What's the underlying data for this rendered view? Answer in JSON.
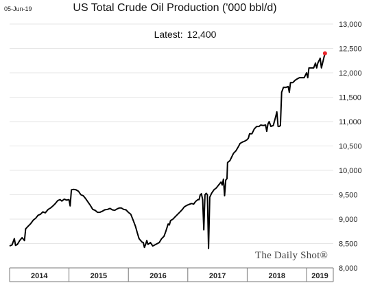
{
  "date_stamp": "05-Jun-19",
  "latest": {
    "label": "Latest:",
    "value": "12,400"
  },
  "watermark": "The Daily Shot®",
  "colors": {
    "line": "#000000",
    "latest_marker": "#e8262b",
    "grid": "#e6e6e6",
    "axis": "#777777"
  },
  "chart_data": {
    "type": "line",
    "title": "US Total Crude Oil Production ('000 bbl/d)",
    "y_axis_position": "right",
    "ylim": [
      8000,
      13000
    ],
    "yticks": [
      8000,
      8500,
      9000,
      9500,
      10000,
      10500,
      11000,
      11500,
      12000,
      12500,
      13000
    ],
    "ytick_labels": [
      "8,000",
      "8,500",
      "9,000",
      "9,500",
      "10,000",
      "10,500",
      "11,000",
      "11,500",
      "12,000",
      "12,500",
      "13,000"
    ],
    "xlim": [
      2014.0,
      2019.45
    ],
    "x_categories": [
      {
        "label": "2014",
        "start": 2014.0,
        "end": 2015.0
      },
      {
        "label": "2015",
        "start": 2015.0,
        "end": 2016.0
      },
      {
        "label": "2016",
        "start": 2016.0,
        "end": 2017.0
      },
      {
        "label": "2017",
        "start": 2017.0,
        "end": 2018.0
      },
      {
        "label": "2018",
        "start": 2018.0,
        "end": 2019.0
      },
      {
        "label": "2019",
        "start": 2019.0,
        "end": 2019.45
      }
    ],
    "grid": true,
    "series": [
      {
        "latest_value": 12400,
        "points": [
          [
            2014.0,
            8450
          ],
          [
            2014.04,
            8470
          ],
          [
            2014.08,
            8600
          ],
          [
            2014.1,
            8460
          ],
          [
            2014.13,
            8480
          ],
          [
            2014.17,
            8560
          ],
          [
            2014.21,
            8620
          ],
          [
            2014.25,
            8560
          ],
          [
            2014.27,
            8800
          ],
          [
            2014.31,
            8850
          ],
          [
            2014.35,
            8900
          ],
          [
            2014.4,
            8980
          ],
          [
            2014.44,
            9020
          ],
          [
            2014.48,
            9080
          ],
          [
            2014.52,
            9100
          ],
          [
            2014.56,
            9150
          ],
          [
            2014.6,
            9130
          ],
          [
            2014.65,
            9200
          ],
          [
            2014.69,
            9230
          ],
          [
            2014.73,
            9270
          ],
          [
            2014.77,
            9320
          ],
          [
            2014.81,
            9380
          ],
          [
            2014.85,
            9400
          ],
          [
            2014.88,
            9370
          ],
          [
            2014.92,
            9410
          ],
          [
            2014.96,
            9390
          ],
          [
            2015.0,
            9400
          ],
          [
            2015.02,
            9270
          ],
          [
            2015.04,
            9600
          ],
          [
            2015.08,
            9610
          ],
          [
            2015.12,
            9600
          ],
          [
            2015.16,
            9570
          ],
          [
            2015.2,
            9500
          ],
          [
            2015.24,
            9480
          ],
          [
            2015.28,
            9420
          ],
          [
            2015.32,
            9350
          ],
          [
            2015.36,
            9280
          ],
          [
            2015.4,
            9200
          ],
          [
            2015.44,
            9180
          ],
          [
            2015.48,
            9140
          ],
          [
            2015.52,
            9140
          ],
          [
            2015.56,
            9160
          ],
          [
            2015.6,
            9190
          ],
          [
            2015.65,
            9200
          ],
          [
            2015.69,
            9220
          ],
          [
            2015.73,
            9190
          ],
          [
            2015.77,
            9180
          ],
          [
            2015.81,
            9210
          ],
          [
            2015.85,
            9230
          ],
          [
            2015.88,
            9230
          ],
          [
            2015.92,
            9200
          ],
          [
            2015.96,
            9190
          ],
          [
            2016.0,
            9140
          ],
          [
            2016.04,
            9100
          ],
          [
            2016.08,
            8980
          ],
          [
            2016.12,
            8850
          ],
          [
            2016.15,
            8720
          ],
          [
            2016.18,
            8600
          ],
          [
            2016.2,
            8570
          ],
          [
            2016.23,
            8530
          ],
          [
            2016.25,
            8520
          ],
          [
            2016.27,
            8420
          ],
          [
            2016.29,
            8480
          ],
          [
            2016.31,
            8560
          ],
          [
            2016.33,
            8480
          ],
          [
            2016.37,
            8520
          ],
          [
            2016.41,
            8450
          ],
          [
            2016.46,
            8480
          ],
          [
            2016.52,
            8520
          ],
          [
            2016.56,
            8600
          ],
          [
            2016.6,
            8650
          ],
          [
            2016.63,
            8750
          ],
          [
            2016.67,
            8900
          ],
          [
            2016.69,
            8880
          ],
          [
            2016.71,
            8970
          ],
          [
            2016.75,
            9000
          ],
          [
            2016.79,
            9050
          ],
          [
            2016.83,
            9100
          ],
          [
            2016.87,
            9150
          ],
          [
            2016.91,
            9200
          ],
          [
            2016.94,
            9250
          ],
          [
            2016.98,
            9280
          ],
          [
            2017.02,
            9300
          ],
          [
            2017.06,
            9320
          ],
          [
            2017.1,
            9310
          ],
          [
            2017.13,
            9360
          ],
          [
            2017.17,
            9400
          ],
          [
            2017.19,
            9400
          ],
          [
            2017.21,
            9500
          ],
          [
            2017.23,
            9520
          ],
          [
            2017.25,
            9400
          ],
          [
            2017.27,
            8780
          ],
          [
            2017.29,
            9500
          ],
          [
            2017.31,
            9530
          ],
          [
            2017.33,
            9500
          ],
          [
            2017.35,
            8400
          ],
          [
            2017.37,
            9450
          ],
          [
            2017.4,
            9530
          ],
          [
            2017.44,
            9600
          ],
          [
            2017.48,
            9640
          ],
          [
            2017.52,
            9700
          ],
          [
            2017.56,
            9760
          ],
          [
            2017.58,
            9700
          ],
          [
            2017.6,
            9820
          ],
          [
            2017.62,
            9480
          ],
          [
            2017.64,
            9800
          ],
          [
            2017.66,
            9830
          ],
          [
            2017.67,
            10160
          ],
          [
            2017.71,
            10200
          ],
          [
            2017.73,
            10250
          ],
          [
            2017.77,
            10350
          ],
          [
            2017.81,
            10400
          ],
          [
            2017.85,
            10480
          ],
          [
            2017.88,
            10550
          ],
          [
            2017.92,
            10580
          ],
          [
            2017.96,
            10600
          ],
          [
            2018.0,
            10630
          ],
          [
            2018.02,
            10660
          ],
          [
            2018.04,
            10750
          ],
          [
            2018.08,
            10750
          ],
          [
            2018.12,
            10850
          ],
          [
            2018.16,
            10900
          ],
          [
            2018.2,
            10900
          ],
          [
            2018.23,
            10930
          ],
          [
            2018.27,
            10920
          ],
          [
            2018.31,
            10930
          ],
          [
            2018.33,
            10800
          ],
          [
            2018.35,
            10950
          ],
          [
            2018.37,
            11000
          ],
          [
            2018.4,
            10900
          ],
          [
            2018.44,
            10920
          ],
          [
            2018.48,
            11100
          ],
          [
            2018.5,
            11200
          ],
          [
            2018.52,
            10900
          ],
          [
            2018.54,
            10900
          ],
          [
            2018.56,
            10920
          ],
          [
            2018.58,
            11600
          ],
          [
            2018.61,
            11700
          ],
          [
            2018.65,
            11700
          ],
          [
            2018.69,
            11720
          ],
          [
            2018.71,
            11600
          ],
          [
            2018.73,
            11800
          ],
          [
            2018.77,
            11800
          ],
          [
            2018.81,
            11850
          ],
          [
            2018.85,
            11880
          ],
          [
            2018.88,
            11900
          ],
          [
            2018.92,
            11900
          ],
          [
            2018.96,
            11900
          ],
          [
            2019.0,
            12000
          ],
          [
            2019.02,
            11900
          ],
          [
            2019.04,
            12100
          ],
          [
            2019.08,
            12100
          ],
          [
            2019.12,
            12100
          ],
          [
            2019.15,
            12200
          ],
          [
            2019.17,
            12100
          ],
          [
            2019.19,
            12200
          ],
          [
            2019.23,
            12300
          ],
          [
            2019.25,
            12100
          ],
          [
            2019.27,
            12200
          ],
          [
            2019.29,
            12300
          ],
          [
            2019.31,
            12400
          ]
        ]
      }
    ]
  }
}
